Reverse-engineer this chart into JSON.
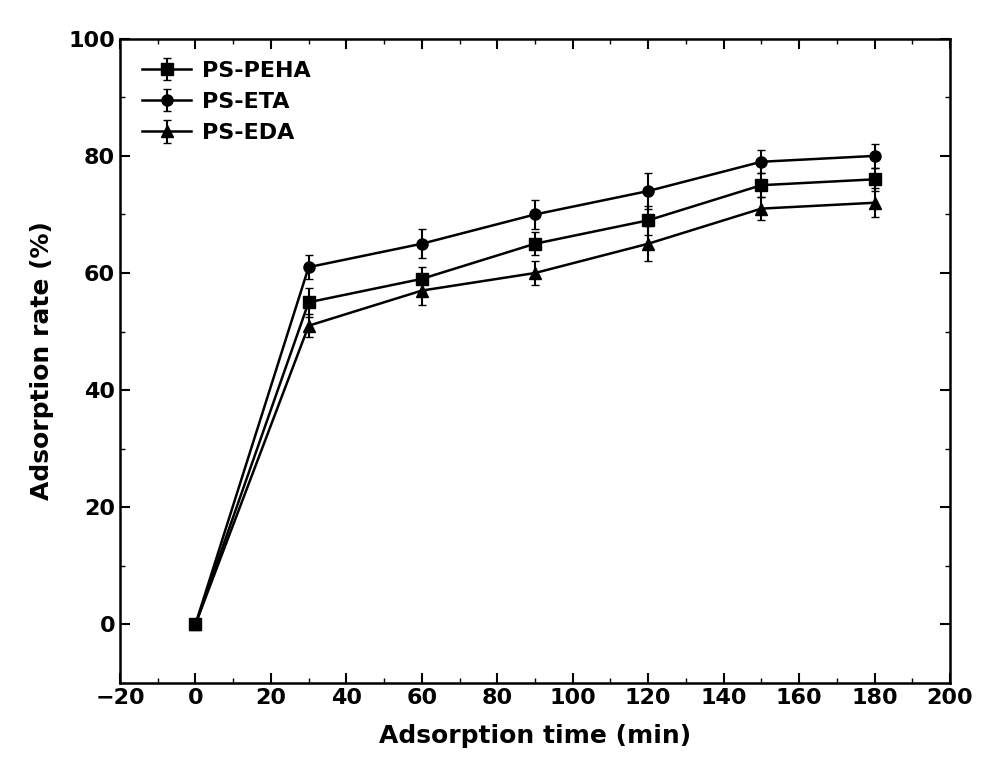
{
  "series": [
    {
      "label": "PS-PEHA",
      "marker": "s",
      "x": [
        0,
        30,
        60,
        90,
        120,
        150,
        180
      ],
      "y": [
        0,
        55,
        59,
        65,
        69,
        75,
        76
      ],
      "yerr": [
        0,
        2.5,
        2.0,
        2.0,
        2.5,
        2.0,
        2.0
      ]
    },
    {
      "label": "PS-ETA",
      "marker": "o",
      "x": [
        0,
        30,
        60,
        90,
        120,
        150,
        180
      ],
      "y": [
        0,
        61,
        65,
        70,
        74,
        79,
        80
      ],
      "yerr": [
        0,
        2.0,
        2.5,
        2.5,
        3.0,
        2.0,
        2.0
      ]
    },
    {
      "label": "PS-EDA",
      "marker": "^",
      "x": [
        0,
        30,
        60,
        90,
        120,
        150,
        180
      ],
      "y": [
        0,
        51,
        57,
        60,
        65,
        71,
        72
      ],
      "yerr": [
        0,
        2.0,
        2.5,
        2.0,
        3.0,
        2.0,
        2.5
      ]
    }
  ],
  "xlabel": "Adsorption time (min)",
  "ylabel": "Adsorption rate (%)",
  "xlim": [
    -20,
    200
  ],
  "ylim": [
    -10,
    100
  ],
  "xticks": [
    -20,
    0,
    20,
    40,
    60,
    80,
    100,
    120,
    140,
    160,
    180,
    200
  ],
  "yticks": [
    0,
    20,
    40,
    60,
    80,
    100
  ],
  "line_color": "#000000",
  "background_color": "#ffffff",
  "marker_size": 8,
  "line_width": 1.8,
  "capsize": 3,
  "elinewidth": 1.5,
  "font_size_ticks": 16,
  "font_size_labels": 18,
  "font_size_legend": 16
}
